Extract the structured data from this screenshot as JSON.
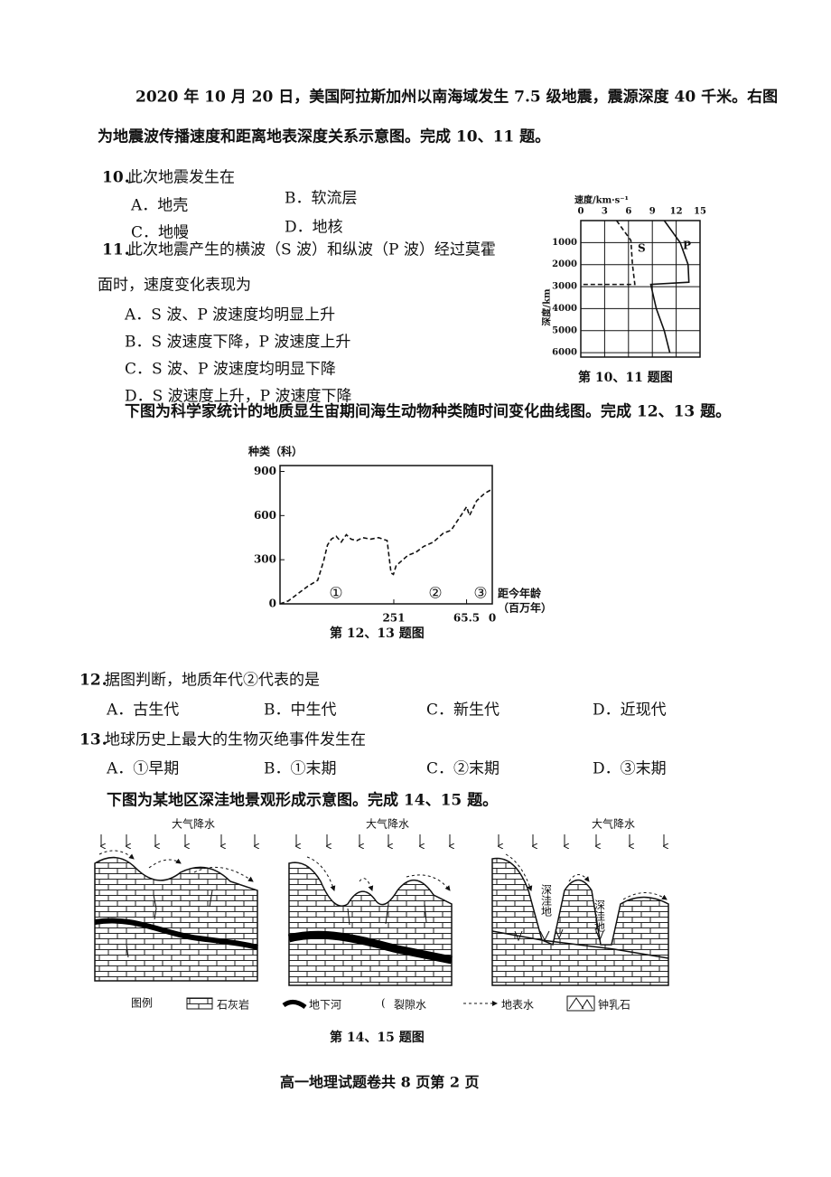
{
  "intro_1": [
    "2020 年 10 月 20 日，美国阿拉斯加州以南海域发生 7.5 级地震，震源深度 40 千米。右图",
    "为地震波传播速度和距离地表深度关系示意图。完成 10、11 题。"
  ],
  "intro_2": "下图为科学家统计的地质显生宙期间海生动物种类随时间变化曲线图。完成 12、13 题。",
  "intro_3": "下图为某地区深洼地景观形成示意图。完成 14、15 题。",
  "questions": [
    {
      "number": "10．",
      "stem": [
        "此次地震发生在"
      ],
      "options": [
        "A．地壳",
        "B．软流层",
        "C．地幔",
        "D．地核"
      ]
    },
    {
      "number": "11．",
      "stem": [
        "此次地震产生的横波（S 波）和纵波（P 波）经过莫霍",
        "面时，速度变化表现为"
      ],
      "options": [
        "A．S 波、P 波速度均明显上升",
        "B．S 波速度下降，P 波速度上升",
        "C．S 波、P 波速度均明显下降",
        "D．S 波速度上升，P 波速度下降"
      ]
    },
    {
      "number": "12．",
      "stem": [
        "据图判断，地质年代②代表的是"
      ],
      "options": [
        "A．古生代",
        "B．中生代",
        "C．新生代",
        "D．近现代"
      ]
    },
    {
      "number": "13．",
      "stem": [
        "地球历史上最大的生物灭绝事件发生在"
      ],
      "options": [
        "A．①早期",
        "B．①末期",
        "C．②末期",
        "D．③末期"
      ]
    }
  ],
  "chart_data": [
    {
      "type": "line",
      "caption": "第 10、11 题图",
      "x_label": "速度/km·s⁻¹",
      "y_label": "深度/km",
      "xlim": [
        0,
        15
      ],
      "xticks": [
        0,
        3,
        6,
        9,
        12,
        15
      ],
      "ylim": [
        0,
        6200
      ],
      "yticks": [
        1000,
        2000,
        3000,
        4000,
        5000,
        6000
      ],
      "y_reversed": true,
      "grid": true,
      "series": [
        {
          "name": "S",
          "color": "#111",
          "dashed": true,
          "x": [
            4.5,
            6.3,
            6.5,
            6.8,
            0
          ],
          "values": [
            0,
            900,
            2000,
            2900,
            2900
          ]
        },
        {
          "name": "P",
          "color": "#111",
          "dashed": false,
          "x": [
            10.5,
            12.5,
            13.5,
            13.6,
            8.8,
            9.5,
            10.5,
            11.2
          ],
          "values": [
            0,
            1000,
            2000,
            2800,
            2900,
            4000,
            5000,
            6000
          ]
        }
      ]
    },
    {
      "type": "line",
      "caption": "第 12、13 题图",
      "y_label": "种类（科）",
      "x_label": [
        "距今年龄",
        "（百万年）"
      ],
      "period_labels": [
        "①",
        "②",
        "③"
      ],
      "xlim": [
        541,
        0
      ],
      "xticks": [
        251,
        65.5,
        0
      ],
      "ylim": [
        0,
        940
      ],
      "yticks": [
        0,
        300,
        600,
        900
      ],
      "grid": false,
      "series": [
        {
          "color": "#111",
          "dashed": true,
          "x": [
            541,
            520,
            495,
            470,
            445,
            430,
            420,
            410,
            398,
            385,
            372,
            360,
            345,
            330,
            310,
            290,
            268,
            258,
            252,
            245,
            232,
            215,
            195,
            175,
            150,
            125,
            105,
            90,
            75,
            65.5,
            58,
            40,
            20,
            0
          ],
          "values": [
            0,
            20,
            70,
            120,
            160,
            290,
            400,
            440,
            460,
            420,
            470,
            440,
            430,
            450,
            440,
            450,
            430,
            210,
            200,
            260,
            290,
            330,
            350,
            390,
            420,
            480,
            500,
            560,
            620,
            660,
            600,
            700,
            750,
            780
          ]
        }
      ]
    }
  ],
  "figure_3": {
    "rain_labels": [
      "大气降水",
      "大气降水",
      "大气降水"
    ],
    "depression_labels": [
      "深洼地",
      "深洼地"
    ],
    "legend_title": "图例",
    "legend": [
      "石灰岩",
      "地下河",
      "裂隙水",
      "地表水",
      "钟乳石"
    ],
    "caption": "第 14、15 题图"
  },
  "footer": "高一地理试题卷共 8 页第 2 页"
}
